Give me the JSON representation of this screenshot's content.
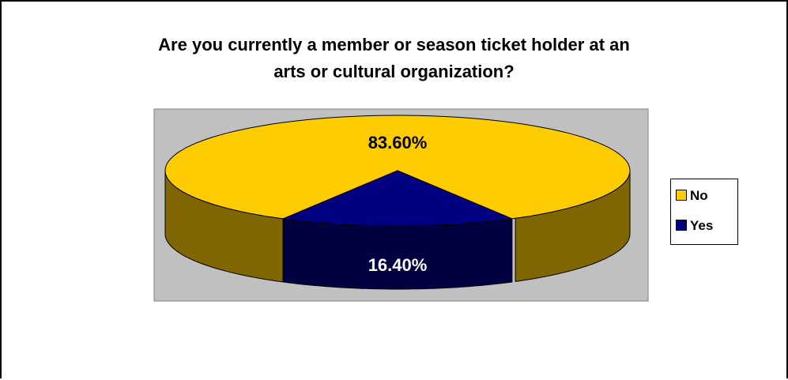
{
  "chart_data": {
    "type": "pie",
    "title_lines": [
      "Are you currently a member or season ticket holder at an",
      "arts or cultural organization?"
    ],
    "slices": [
      {
        "name": "No",
        "value": 83.6,
        "label": "83.60%",
        "color": "#FFCC00",
        "side_color": "#806600"
      },
      {
        "name": "Yes",
        "value": 16.4,
        "label": "16.40%",
        "color": "#000080",
        "side_color": "#000040"
      }
    ],
    "legend_position": "right",
    "plot_background": "#C0C0C0"
  }
}
